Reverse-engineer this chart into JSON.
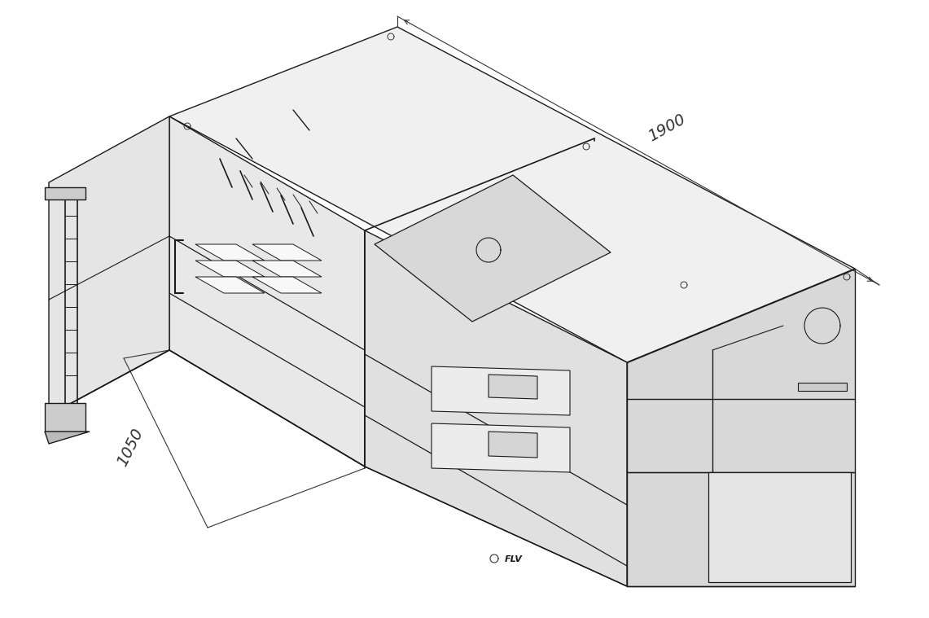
{
  "background_color": "#ffffff",
  "line_color": "#1a1a1a",
  "line_width": 1.0,
  "dim_line_color": "#333333",
  "dim_text_1900": "1900",
  "dim_text_1050": "1050",
  "dim_fontsize": 14,
  "fig_width": 11.41,
  "fig_height": 7.59,
  "dpi": 100,
  "title": ""
}
